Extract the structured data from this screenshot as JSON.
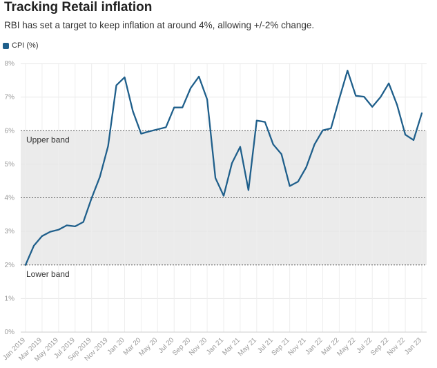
{
  "header": {
    "title": "Tracking Retail inflation",
    "subtitle": "RBI has set a target to keep inflation at around 4%, allowing +/-2% change."
  },
  "chart_data": {
    "type": "line",
    "xlabel": "",
    "ylabel": "",
    "ylim": [
      0,
      8
    ],
    "y_ticks": [
      "0%",
      "1%",
      "2%",
      "3%",
      "4%",
      "5%",
      "6%",
      "7%",
      "8%"
    ],
    "grid": true,
    "legend": "top-left",
    "x_tick_labels": [
      "Jan 2019",
      "Mar 2019",
      "May 2019",
      "Jul 2019",
      "Sep 2019",
      "Nov 2019",
      "Jan 20",
      "Mar 20",
      "May 20",
      "Jul 20",
      "Sep 20",
      "Nov 20",
      "Jan 21",
      "Mar 21",
      "May 21",
      "Jul 21",
      "Sep 21",
      "Nov 21",
      "Jan 22",
      "Mar 22",
      "May 22",
      "Jul 22",
      "Sep 22",
      "Nov 22",
      "Jan 23"
    ],
    "bands": {
      "upper": 6,
      "lower": 2,
      "target": 4,
      "upper_label": "Upper band",
      "lower_label": "Lower band"
    },
    "series": [
      {
        "name": "CPI (%)",
        "color": "#1f5f8b",
        "values": [
          2.0,
          2.57,
          2.86,
          2.99,
          3.05,
          3.18,
          3.15,
          3.28,
          3.99,
          4.62,
          5.54,
          7.35,
          7.59,
          6.58,
          5.91,
          5.98,
          6.04,
          6.1,
          6.69,
          6.69,
          7.27,
          7.61,
          6.93,
          4.59,
          4.06,
          5.03,
          5.52,
          4.23,
          6.3,
          6.26,
          5.59,
          5.3,
          4.35,
          4.48,
          4.91,
          5.59,
          6.01,
          6.07,
          6.95,
          7.79,
          7.04,
          7.01,
          6.71,
          7.0,
          7.41,
          6.77,
          5.88,
          5.72,
          6.52
        ]
      }
    ]
  }
}
